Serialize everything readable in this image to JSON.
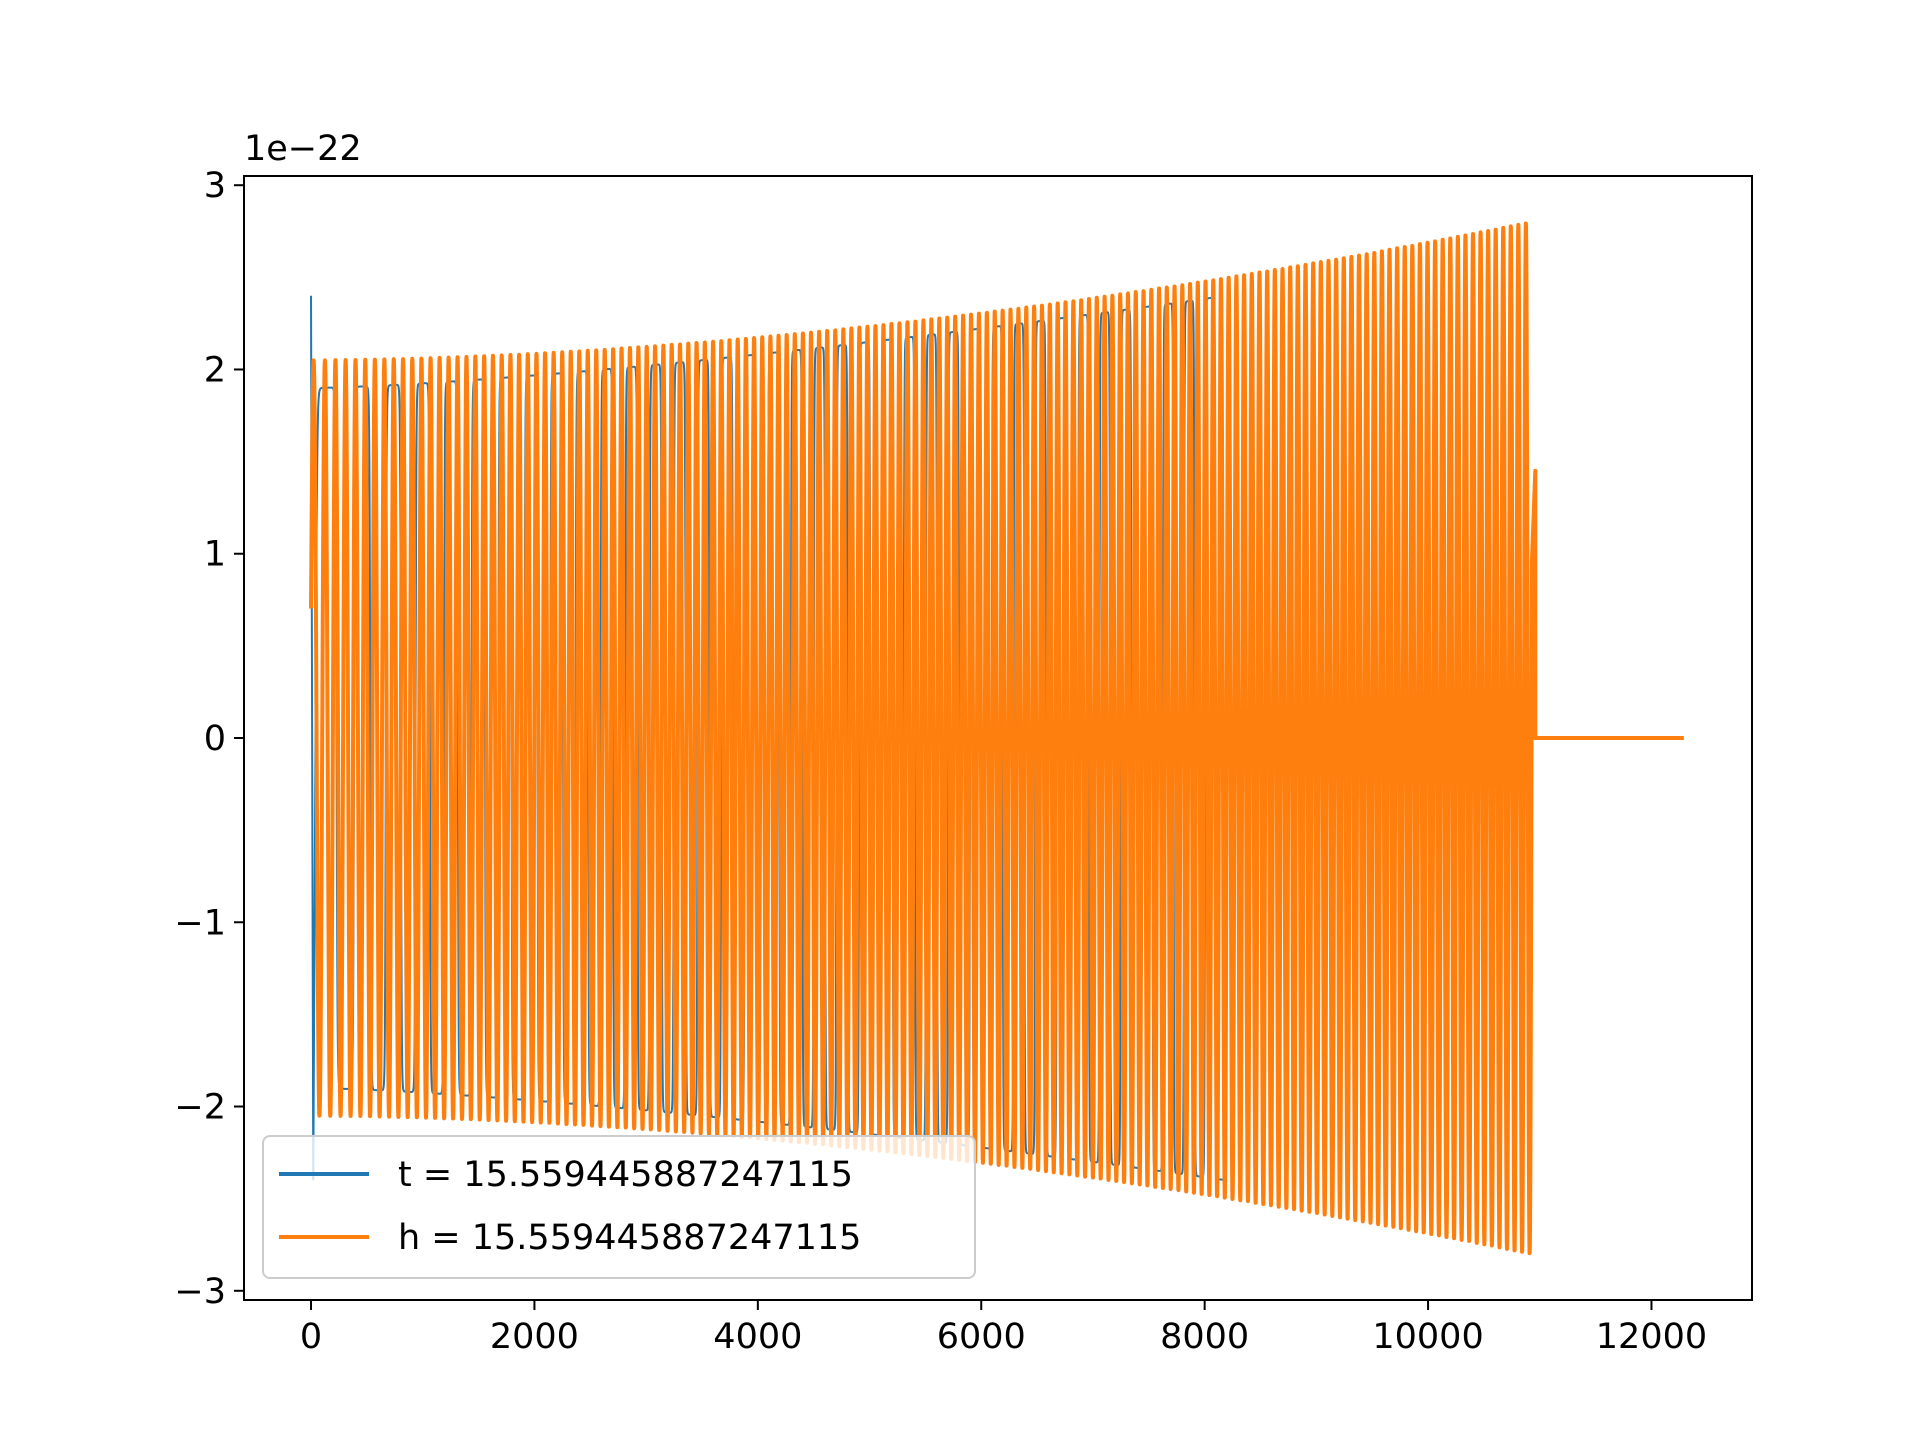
{
  "chart_data": {
    "type": "line",
    "title": "",
    "xlabel": "",
    "ylabel": "",
    "xlim": [
      -600,
      12900
    ],
    "ylim": [
      -3.05,
      3.05
    ],
    "y_offset_text": "1e−22",
    "x_ticks": [
      0,
      2000,
      4000,
      6000,
      8000,
      10000,
      12000
    ],
    "x_tick_labels": [
      "0",
      "2000",
      "4000",
      "6000",
      "8000",
      "10000",
      "12000"
    ],
    "y_ticks": [
      -3,
      -2,
      -1,
      0,
      1,
      2,
      3
    ],
    "y_tick_labels": [
      "−3",
      "−2",
      "−1",
      "0",
      "1",
      "2",
      "3"
    ],
    "grid": false,
    "legend_position": "lower-left",
    "series": [
      {
        "name": "t = 15.559445887247115",
        "color": "#1f77b4",
        "x_start": 0,
        "x_end": 8190,
        "amplitude_start": 1.9,
        "amplitude_end": 2.4,
        "initial_value": 2.4,
        "cycles": 38,
        "style": "square-chirp"
      },
      {
        "name": "h = 15.559445887247115",
        "color": "#ff7f0e",
        "x_start": 0,
        "x_end": 10930,
        "amplitude_start": 2.05,
        "amplitude_end": 2.8,
        "cycles": 150,
        "tail_x_end": 12290,
        "tail_value": 0
      }
    ]
  }
}
